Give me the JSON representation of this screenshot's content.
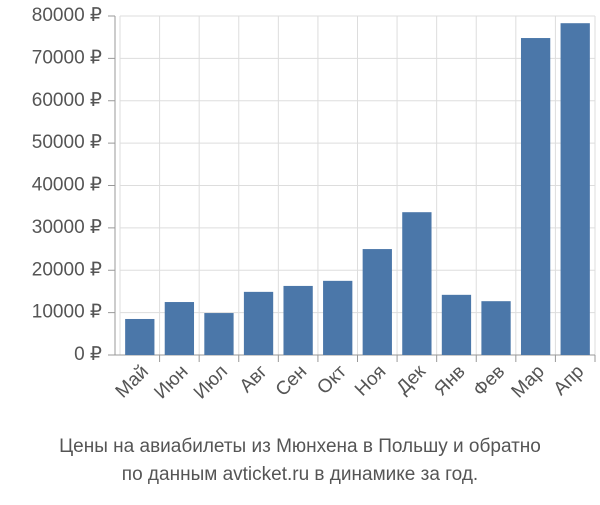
{
  "chart_data": {
    "type": "bar",
    "categories": [
      "Май",
      "Июн",
      "Июл",
      "Авг",
      "Сен",
      "Окт",
      "Ноя",
      "Дек",
      "Янв",
      "Фев",
      "Мар",
      "Апр"
    ],
    "values": [
      8500,
      12500,
      9900,
      14900,
      16300,
      17500,
      25000,
      33700,
      14200,
      12700,
      74800,
      78300
    ],
    "color": "#4b77a9",
    "ylim": [
      0,
      80000
    ],
    "yticks": [
      {
        "value": 0,
        "label": "0 ₽"
      },
      {
        "value": 10000,
        "label": "10000 ₽"
      },
      {
        "value": 20000,
        "label": "20000 ₽"
      },
      {
        "value": 30000,
        "label": "30000 ₽"
      },
      {
        "value": 40000,
        "label": "40000 ₽"
      },
      {
        "value": 50000,
        "label": "50000 ₽"
      },
      {
        "value": 60000,
        "label": "60000 ₽"
      },
      {
        "value": 70000,
        "label": "70000 ₽"
      },
      {
        "value": 80000,
        "label": "80000 ₽"
      }
    ],
    "grid": true,
    "caption": [
      "Цены на авиабилеты из Мюнхена в Польшу и обратно",
      "по данным avticket.ru в динамике за год."
    ]
  }
}
